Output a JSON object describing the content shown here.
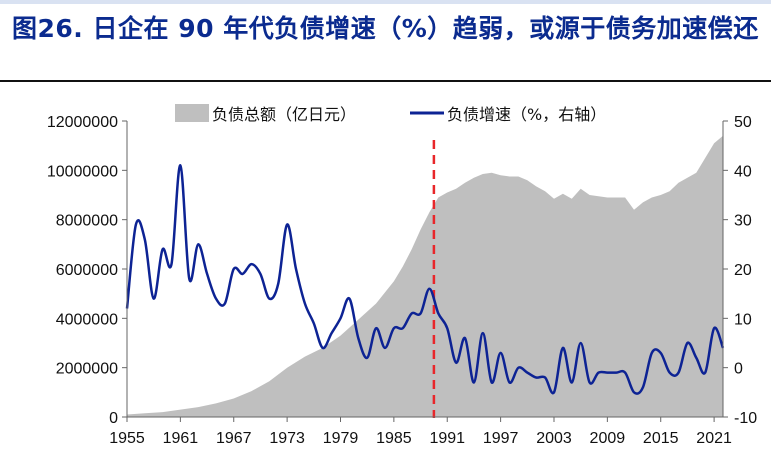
{
  "title": "图26. 日企在 90 年代负债增速（%）趋弱，或源于债务加速偿还",
  "colors": {
    "title": "#0b2b8f",
    "area": "#bfbfbf",
    "line": "#0d2394",
    "marker": "#e8262a"
  },
  "chart_data": {
    "type": "area",
    "legend": [
      "负债总额（亿日元）",
      "负债增速（%，右轴）"
    ],
    "legend_position": "top",
    "grid": false,
    "x_ticks": [
      "1955",
      "1961",
      "1967",
      "1973",
      "1979",
      "1985",
      "1991",
      "1997",
      "2003",
      "2009",
      "2015",
      "2021"
    ],
    "xlim": [
      1955,
      2022
    ],
    "y_left": {
      "lim": [
        0,
        12000000
      ],
      "ticks": [
        "0",
        "2000000",
        "4000000",
        "6000000",
        "8000000",
        "10000000",
        "12000000"
      ]
    },
    "y_right": {
      "lim": [
        -10,
        50
      ],
      "ticks": [
        "-10",
        "0",
        "10",
        "20",
        "30",
        "40",
        "50"
      ]
    },
    "marker_line_year": 1989.5,
    "series": [
      {
        "name": "负债总额（亿日元）",
        "type": "area",
        "axis": "left",
        "x": [
          1955,
          1957,
          1959,
          1961,
          1963,
          1965,
          1967,
          1969,
          1971,
          1973,
          1975,
          1977,
          1979,
          1981,
          1983,
          1985,
          1986,
          1987,
          1988,
          1989,
          1990,
          1991,
          1992,
          1993,
          1994,
          1995,
          1996,
          1997,
          1998,
          1999,
          2000,
          2001,
          2002,
          2003,
          2004,
          2005,
          2006,
          2007,
          2008,
          2009,
          2010,
          2011,
          2012,
          2013,
          2014,
          2015,
          2016,
          2017,
          2018,
          2019,
          2020,
          2021,
          2022
        ],
        "values": [
          100000,
          150000,
          200000,
          300000,
          400000,
          550000,
          750000,
          1050000,
          1450000,
          2000000,
          2450000,
          2800000,
          3300000,
          3950000,
          4600000,
          5500000,
          6100000,
          6800000,
          7600000,
          8300000,
          8900000,
          9100000,
          9250000,
          9500000,
          9700000,
          9850000,
          9900000,
          9800000,
          9750000,
          9750000,
          9600000,
          9350000,
          9150000,
          8850000,
          9050000,
          8850000,
          9250000,
          9000000,
          8950000,
          8900000,
          8900000,
          8900000,
          8400000,
          8700000,
          8900000,
          9000000,
          9150000,
          9500000,
          9700000,
          9900000,
          10500000,
          11100000,
          11400000
        ]
      },
      {
        "name": "负债增速（%，右轴）",
        "type": "line",
        "axis": "right",
        "x": [
          1955,
          1956,
          1957,
          1958,
          1959,
          1960,
          1961,
          1962,
          1963,
          1964,
          1965,
          1966,
          1967,
          1968,
          1969,
          1970,
          1971,
          1972,
          1973,
          1974,
          1975,
          1976,
          1977,
          1978,
          1979,
          1980,
          1981,
          1982,
          1983,
          1984,
          1985,
          1986,
          1987,
          1988,
          1989,
          1990,
          1991,
          1992,
          1993,
          1994,
          1995,
          1996,
          1997,
          1998,
          1999,
          2000,
          2001,
          2002,
          2003,
          2004,
          2005,
          2006,
          2007,
          2008,
          2009,
          2010,
          2011,
          2012,
          2013,
          2014,
          2015,
          2016,
          2017,
          2018,
          2019,
          2020,
          2021,
          2022
        ],
        "values": [
          12,
          29,
          26,
          14,
          24,
          21,
          41,
          18,
          25,
          19,
          14,
          13,
          20,
          19,
          21,
          19,
          14,
          17,
          29,
          20,
          13,
          9,
          4,
          7,
          10,
          14,
          6,
          2,
          8,
          4,
          8,
          8,
          11,
          11,
          16,
          11,
          8,
          1,
          6,
          -3,
          7,
          -3,
          3,
          -3,
          0,
          -1,
          -2,
          -2,
          -5,
          4,
          -3,
          5,
          -3,
          -1,
          -1,
          -1,
          -1,
          -5,
          -4,
          3,
          3,
          -1,
          -1,
          5,
          2,
          -1,
          8,
          4
        ]
      }
    ]
  }
}
